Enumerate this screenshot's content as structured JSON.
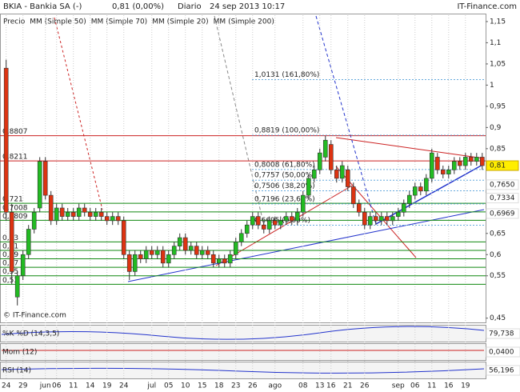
{
  "header": {
    "title": "BKIA - Bankia SA (-)",
    "quote": "0,81 (0,00%)",
    "period": "Diario",
    "date": "24 sep 2013 10:17",
    "brand": "IT-Finance.com"
  },
  "chart_data": {
    "type": "candlestick",
    "legend": [
      {
        "name": "Precio",
        "color": "#333333"
      },
      {
        "name": "MM (Simple 50)",
        "color": "#777777"
      },
      {
        "name": "MM (Simple 70)",
        "color": "#2233cc"
      },
      {
        "name": "MM (Simple 20)",
        "color": "#cc2222"
      },
      {
        "name": "MM (Simple 200)",
        "color": "#118811"
      }
    ],
    "up_color": "#22bb22",
    "down_color": "#dd3311",
    "candles": [
      [
        1.04,
        1.06,
        0.68,
        0.7
      ],
      [
        0.7,
        0.72,
        0.53,
        0.56
      ],
      [
        0.5,
        0.56,
        0.48,
        0.55
      ],
      [
        0.55,
        0.61,
        0.54,
        0.6
      ],
      [
        0.6,
        0.67,
        0.59,
        0.66
      ],
      [
        0.66,
        0.71,
        0.65,
        0.7
      ],
      [
        0.71,
        0.83,
        0.7,
        0.82
      ],
      [
        0.82,
        0.83,
        0.73,
        0.74
      ],
      [
        0.74,
        0.75,
        0.67,
        0.68
      ],
      [
        0.68,
        0.72,
        0.67,
        0.71
      ],
      [
        0.71,
        0.72,
        0.68,
        0.69
      ],
      [
        0.69,
        0.71,
        0.68,
        0.7
      ],
      [
        0.7,
        0.71,
        0.68,
        0.69
      ],
      [
        0.69,
        0.72,
        0.68,
        0.71
      ],
      [
        0.71,
        0.72,
        0.69,
        0.7
      ],
      [
        0.7,
        0.71,
        0.68,
        0.69
      ],
      [
        0.69,
        0.71,
        0.68,
        0.7
      ],
      [
        0.7,
        0.71,
        0.68,
        0.69
      ],
      [
        0.69,
        0.7,
        0.67,
        0.68
      ],
      [
        0.68,
        0.7,
        0.67,
        0.69
      ],
      [
        0.69,
        0.7,
        0.67,
        0.68
      ],
      [
        0.68,
        0.69,
        0.59,
        0.6
      ],
      [
        0.6,
        0.61,
        0.54,
        0.56
      ],
      [
        0.56,
        0.61,
        0.55,
        0.6
      ],
      [
        0.6,
        0.61,
        0.58,
        0.59
      ],
      [
        0.59,
        0.62,
        0.58,
        0.61
      ],
      [
        0.61,
        0.62,
        0.59,
        0.6
      ],
      [
        0.6,
        0.62,
        0.59,
        0.61
      ],
      [
        0.61,
        0.62,
        0.57,
        0.58
      ],
      [
        0.58,
        0.61,
        0.57,
        0.6
      ],
      [
        0.6,
        0.63,
        0.59,
        0.62
      ],
      [
        0.62,
        0.65,
        0.61,
        0.64
      ],
      [
        0.64,
        0.65,
        0.6,
        0.61
      ],
      [
        0.61,
        0.63,
        0.6,
        0.62
      ],
      [
        0.62,
        0.63,
        0.59,
        0.6
      ],
      [
        0.6,
        0.62,
        0.59,
        0.61
      ],
      [
        0.61,
        0.62,
        0.59,
        0.6
      ],
      [
        0.6,
        0.61,
        0.57,
        0.58
      ],
      [
        0.58,
        0.6,
        0.57,
        0.59
      ],
      [
        0.59,
        0.6,
        0.57,
        0.58
      ],
      [
        0.58,
        0.61,
        0.57,
        0.6
      ],
      [
        0.6,
        0.64,
        0.59,
        0.63
      ],
      [
        0.63,
        0.66,
        0.62,
        0.65
      ],
      [
        0.65,
        0.68,
        0.64,
        0.67
      ],
      [
        0.67,
        0.7,
        0.66,
        0.69
      ],
      [
        0.69,
        0.7,
        0.66,
        0.67
      ],
      [
        0.67,
        0.68,
        0.65,
        0.66
      ],
      [
        0.66,
        0.69,
        0.65,
        0.68
      ],
      [
        0.68,
        0.69,
        0.66,
        0.67
      ],
      [
        0.67,
        0.69,
        0.66,
        0.68
      ],
      [
        0.68,
        0.7,
        0.67,
        0.69
      ],
      [
        0.69,
        0.7,
        0.67,
        0.68
      ],
      [
        0.68,
        0.71,
        0.67,
        0.7
      ],
      [
        0.7,
        0.75,
        0.69,
        0.74
      ],
      [
        0.74,
        0.79,
        0.73,
        0.78
      ],
      [
        0.78,
        0.81,
        0.77,
        0.8
      ],
      [
        0.8,
        0.85,
        0.79,
        0.84
      ],
      [
        0.83,
        0.88,
        0.82,
        0.87
      ],
      [
        0.86,
        0.87,
        0.79,
        0.8
      ],
      [
        0.8,
        0.81,
        0.77,
        0.78
      ],
      [
        0.78,
        0.82,
        0.77,
        0.81
      ],
      [
        0.8,
        0.81,
        0.75,
        0.76
      ],
      [
        0.76,
        0.77,
        0.71,
        0.72
      ],
      [
        0.72,
        0.73,
        0.69,
        0.7
      ],
      [
        0.7,
        0.71,
        0.66,
        0.67
      ],
      [
        0.67,
        0.7,
        0.66,
        0.69
      ],
      [
        0.69,
        0.7,
        0.67,
        0.68
      ],
      [
        0.68,
        0.7,
        0.67,
        0.69
      ],
      [
        0.69,
        0.7,
        0.67,
        0.68
      ],
      [
        0.68,
        0.7,
        0.67,
        0.69
      ],
      [
        0.69,
        0.71,
        0.68,
        0.7
      ],
      [
        0.7,
        0.73,
        0.69,
        0.72
      ],
      [
        0.72,
        0.75,
        0.71,
        0.74
      ],
      [
        0.74,
        0.77,
        0.73,
        0.76
      ],
      [
        0.76,
        0.77,
        0.74,
        0.75
      ],
      [
        0.75,
        0.79,
        0.74,
        0.78
      ],
      [
        0.78,
        0.85,
        0.77,
        0.84
      ],
      [
        0.83,
        0.84,
        0.79,
        0.8
      ],
      [
        0.8,
        0.81,
        0.78,
        0.79
      ],
      [
        0.79,
        0.81,
        0.78,
        0.8
      ],
      [
        0.8,
        0.83,
        0.79,
        0.82
      ],
      [
        0.82,
        0.83,
        0.8,
        0.81
      ],
      [
        0.81,
        0.84,
        0.8,
        0.83
      ],
      [
        0.83,
        0.84,
        0.81,
        0.82
      ],
      [
        0.82,
        0.84,
        0.81,
        0.83
      ],
      [
        0.83,
        0.84,
        0.8,
        0.81
      ]
    ],
    "xlim": [
      -1.1,
      85.6
    ],
    "xticks": [
      {
        "value": 0,
        "label": "24"
      },
      {
        "value": 3,
        "label": "29"
      },
      {
        "value": 7,
        "label": "jun"
      },
      {
        "value": 9,
        "label": "06"
      },
      {
        "value": 12,
        "label": "11"
      },
      {
        "value": 15,
        "label": "14"
      },
      {
        "value": 18,
        "label": "19"
      },
      {
        "value": 21,
        "label": "24"
      },
      {
        "value": 26,
        "label": "jul"
      },
      {
        "value": 29,
        "label": "05"
      },
      {
        "value": 32,
        "label": "10"
      },
      {
        "value": 35,
        "label": "15"
      },
      {
        "value": 38,
        "label": "18"
      },
      {
        "value": 41,
        "label": "23"
      },
      {
        "value": 44,
        "label": "26"
      },
      {
        "value": 48,
        "label": "ago"
      },
      {
        "value": 53,
        "label": "08"
      },
      {
        "value": 56,
        "label": "13"
      },
      {
        "value": 58,
        "label": "16"
      },
      {
        "value": 61,
        "label": "21"
      },
      {
        "value": 64,
        "label": "26"
      },
      {
        "value": 70,
        "label": "sep"
      },
      {
        "value": 73,
        "label": "06"
      },
      {
        "value": 76,
        "label": "11"
      },
      {
        "value": 79,
        "label": "16"
      },
      {
        "value": 82,
        "label": "19"
      }
    ],
    "ylim": [
      0.44,
      1.165
    ],
    "yticks": [
      {
        "value": 1.15,
        "label": "1,15"
      },
      {
        "value": 1.1,
        "label": "1,1"
      },
      {
        "value": 1.05,
        "label": "1,05"
      },
      1,
      {
        "value": 0.95,
        "label": "0,95"
      },
      {
        "value": 0.9,
        "label": "0,9"
      },
      {
        "value": 0.85,
        "label": "0,85"
      },
      {
        "value": 0.65,
        "label": "0,65"
      },
      {
        "value": 0.6,
        "label": "0,6"
      },
      {
        "value": 0.55,
        "label": "0,55"
      },
      {
        "value": 0.45,
        "label": "0,45"
      }
    ],
    "grid": true,
    "fib_levels": [
      {
        "value": 1.0131,
        "label": "1,0131 (161,80%)"
      },
      {
        "value": 0.8819,
        "label": "0,8819 (100,00%)"
      },
      {
        "value": 0.8008,
        "label": "0,8008 (61,80%)"
      },
      {
        "value": 0.7757,
        "label": "0,7757 (50,00%)"
      },
      {
        "value": 0.7506,
        "label": "0,7506 (38,20%)"
      },
      {
        "value": 0.7196,
        "label": "0,7196 (23,60%)"
      },
      {
        "value": 0.6695,
        "label": "0,6695 (0,00%)"
      }
    ],
    "levels": [
      {
        "value": 0.8807,
        "label": "0,8807",
        "color": "#cc2222"
      },
      {
        "value": 0.8211,
        "label": "0,8211",
        "color": "#cc2222"
      },
      {
        "value": 0.721,
        "label": "0,721",
        "color": "#118811"
      },
      {
        "value": 0.7008,
        "label": "0,7008",
        "color": "#118811"
      },
      {
        "value": 0.6809,
        "label": "0,6809",
        "color": "#118811"
      },
      {
        "value": 0.63,
        "label": "0,63",
        "color": "#118811"
      },
      {
        "value": 0.61,
        "label": "0,61",
        "color": "#118811"
      },
      {
        "value": 0.59,
        "label": "0,59",
        "color": "#118811"
      },
      {
        "value": 0.57,
        "label": "0,57",
        "color": "#118811"
      },
      {
        "value": 0.55,
        "label": "0,55",
        "color": "#118811"
      },
      {
        "value": 0.53,
        "label": "0,53",
        "color": "#118811"
      }
    ],
    "price_labels": [
      {
        "value": 0.81,
        "label": "0,81",
        "color": "#000000",
        "fill": "#ffee00"
      },
      {
        "value": 0.765,
        "label": "0,7650",
        "color": "#cc2222",
        "fill": "#ffffff"
      },
      {
        "value": 0.7334,
        "label": "0,7334",
        "color": "#666666",
        "fill": "#ffffff"
      },
      {
        "value": 0.6969,
        "label": "0,6969",
        "color": "#2233cc",
        "fill": "#ffffff"
      }
    ],
    "watermark": "© IT-Finance.com"
  },
  "indicators": [
    {
      "name": "%K %D (14,3,5)",
      "value": "79,738",
      "color": "#2233cc"
    },
    {
      "name": "Mom (12)",
      "value": "0,0400",
      "color": "#cc2222"
    },
    {
      "name": "RSI (14)",
      "value": "56,196",
      "color": "#2233cc"
    }
  ]
}
